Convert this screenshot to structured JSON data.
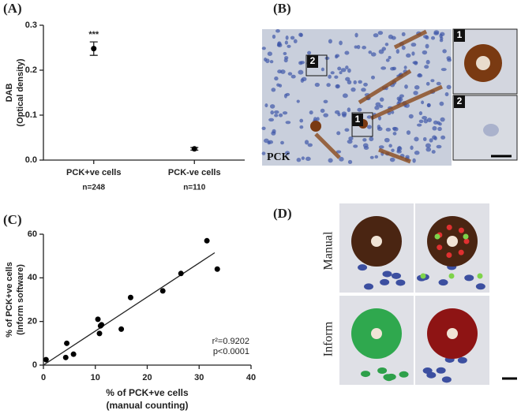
{
  "panels": {
    "a": "(A)",
    "b": "(B)",
    "c": "(C)",
    "d": "(D)"
  },
  "image_b": {
    "stain": "PCK",
    "boxes": [
      "1",
      "2"
    ],
    "insets": [
      "1",
      "2"
    ]
  },
  "image_d": {
    "rows": [
      "Manual",
      "Inform"
    ]
  },
  "chart_data": [
    {
      "type": "errorbar",
      "categories": [
        "PCK+ve cells",
        "PCK-ve cells"
      ],
      "values": [
        0.248,
        0.025
      ],
      "errors": [
        0.015,
        0.003
      ],
      "annotations": [
        "***",
        null
      ],
      "n_labels": [
        "n=248",
        "n=110"
      ],
      "ylabel": [
        "DAB",
        "(Optical density)"
      ],
      "ylim": [
        0,
        0.3
      ],
      "yticks": [
        {
          "value": 0,
          "label": "0.0"
        },
        0.1,
        0.2,
        0.3
      ],
      "color": "#000000"
    },
    {
      "type": "scatter",
      "x": [
        0.5,
        4.3,
        4.5,
        5.8,
        10.5,
        10.8,
        11,
        11.2,
        15,
        16.8,
        23,
        26.5,
        31.5,
        33.5
      ],
      "values": [
        2.5,
        3.5,
        10,
        5,
        21,
        14.5,
        18,
        18.5,
        16.5,
        31,
        34,
        42,
        57,
        44
      ],
      "fit": {
        "x": [
          0,
          33
        ],
        "y": [
          0,
          51.5
        ]
      },
      "xlabel": [
        "% of PCK+ve cells",
        "(manual counting)"
      ],
      "ylabel": [
        "% of PCK+ve cells",
        "(Inform software)"
      ],
      "annotations": [
        "r²=0.9202",
        "p<0.0001"
      ],
      "xlim": [
        0,
        40
      ],
      "xticks": [
        0,
        10,
        20,
        30,
        40
      ],
      "ylim": [
        0,
        60
      ],
      "yticks": [
        0,
        20,
        40,
        60
      ],
      "color": "#000000"
    }
  ]
}
